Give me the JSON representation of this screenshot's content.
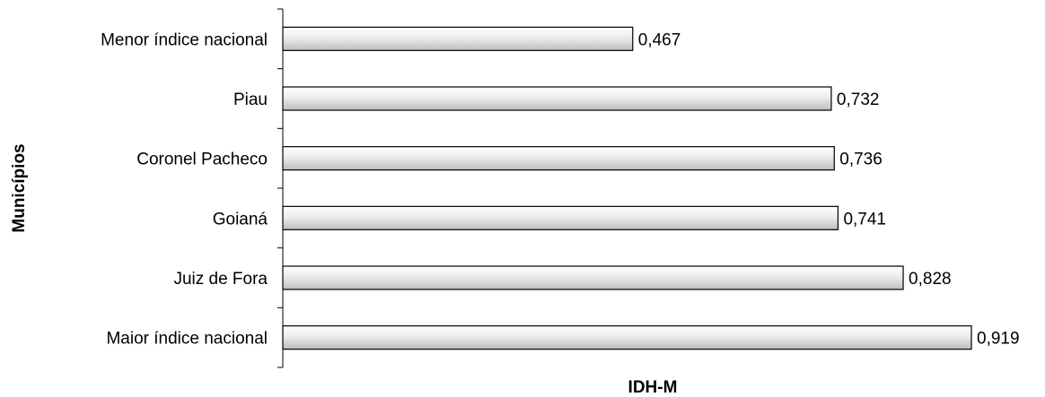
{
  "chart_data": {
    "type": "bar",
    "orientation": "horizontal",
    "categories": [
      "Menor índice nacional",
      "Piau",
      "Coronel Pacheco",
      "Goianá",
      "Juiz de Fora",
      "Maior índice nacional"
    ],
    "values": [
      0.467,
      0.732,
      0.736,
      0.741,
      0.828,
      0.919
    ],
    "value_labels": [
      "0,467",
      "0,732",
      "0,736",
      "0,741",
      "0,828",
      "0,919"
    ],
    "xlabel": "IDH-M",
    "ylabel": "Municípios",
    "xlim": [
      0,
      0.919
    ],
    "grid": false,
    "legend": "none",
    "bar_gradient": [
      "#ffffff",
      "#bdbdbd"
    ],
    "bar_border_color": "#000000"
  }
}
